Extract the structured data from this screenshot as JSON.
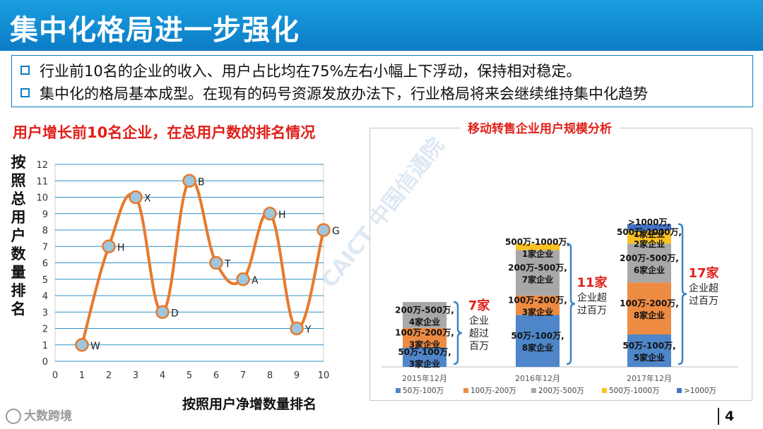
{
  "page": {
    "title": "集中化格局进一步强化",
    "bullets": [
      "行业前10名的企业的收入、用户占比均在75%左右小幅上下浮动，保持相对稳定。",
      "集中化的格局基本成型。在现有的码号资源发放办法下，行业格局将来会继续维持集中化趋势"
    ],
    "page_number": "4",
    "watermark": "大数跨境",
    "caict_watermark": "CAICT 中国信通院"
  },
  "colors": {
    "title_bar": "#0b7cc6",
    "heading_red": "#e0201a",
    "line_orange": "#e8792a",
    "point_fill": "#9dc6df",
    "grid": "#2f8fc4",
    "seg_50_100": "#4e86c9",
    "seg_100_200": "#ee8b43",
    "seg_200_500": "#a8a8a8",
    "seg_500_1000": "#fcc21f",
    "seg_gt1000": "#4472c4",
    "bracket": "#3d85c6"
  },
  "chart_data": [
    {
      "type": "scatter",
      "title": "用户增长前10名企业，在总用户数的排名情况",
      "xlabel": "按照用户净增数量排名",
      "ylabel": "按照总用户数量排名",
      "xlim": [
        0,
        10
      ],
      "ylim": [
        0,
        12
      ],
      "xticks": [
        0,
        1,
        2,
        3,
        4,
        5,
        6,
        7,
        8,
        9,
        10
      ],
      "yticks": [
        0,
        1,
        2,
        3,
        4,
        5,
        6,
        7,
        8,
        9,
        10,
        11,
        12
      ],
      "grid": true,
      "connected": "smooth",
      "points": [
        {
          "x": 1,
          "y": 1,
          "label": "W"
        },
        {
          "x": 2,
          "y": 7,
          "label": "H"
        },
        {
          "x": 3,
          "y": 10,
          "label": "X"
        },
        {
          "x": 4,
          "y": 3,
          "label": "D"
        },
        {
          "x": 5,
          "y": 11,
          "label": "B"
        },
        {
          "x": 6,
          "y": 6,
          "label": "T"
        },
        {
          "x": 7,
          "y": 5,
          "label": "A"
        },
        {
          "x": 8,
          "y": 9,
          "label": "H"
        },
        {
          "x": 9,
          "y": 2,
          "label": "Y"
        },
        {
          "x": 10,
          "y": 8,
          "label": "G"
        }
      ]
    },
    {
      "type": "bar",
      "stacked": true,
      "title": "移动转售企业用户规模分析",
      "categories": [
        "2015年12月",
        "2016年12月",
        "2017年12月"
      ],
      "legend": [
        "50万-100万",
        "100万-200万",
        "200万-500万",
        "500万-1000万",
        ">1000万"
      ],
      "legend_position": "bottom",
      "series": [
        {
          "name": "50万-100万",
          "values": [
            3,
            8,
            5
          ]
        },
        {
          "name": "100万-200万",
          "values": [
            3,
            3,
            8
          ]
        },
        {
          "name": "200万-500万",
          "values": [
            4,
            7,
            6
          ]
        },
        {
          "name": "500万-1000万",
          "values": [
            0,
            1,
            2
          ]
        },
        {
          "name": ">1000万",
          "values": [
            0,
            0,
            1
          ]
        }
      ],
      "segment_labels": [
        [
          {
            "series": 0,
            "range": "50万-100万,",
            "count": "3家企业"
          },
          {
            "series": 1,
            "range": "100万-200万,",
            "count": "3家企业"
          },
          {
            "series": 2,
            "range": "200万-500万,",
            "count": "4家企业"
          }
        ],
        [
          {
            "series": 0,
            "range": "50万-100万,",
            "count": "8家企业"
          },
          {
            "series": 1,
            "range": "100万-200万,",
            "count": "3家企业"
          },
          {
            "series": 2,
            "range": "200万-500万,",
            "count": "7家企业"
          },
          {
            "series": 3,
            "range": "500万-1000万,",
            "count": "1家企业"
          }
        ],
        [
          {
            "series": 0,
            "range": "50万-100万,",
            "count": "5家企业"
          },
          {
            "series": 1,
            "range": "100万-200万,",
            "count": "8家企业"
          },
          {
            "series": 2,
            "range": "200万-500万,",
            "count": "6家企业"
          },
          {
            "series": 3,
            "range": "500万-1000万,",
            "count": "2家企业"
          },
          {
            "series": 4,
            "range": ">1000万,",
            "count": "1家企业"
          }
        ]
      ],
      "annotations": [
        {
          "count": "7家",
          "lines": [
            "企业",
            "超过",
            "百万"
          ]
        },
        {
          "count": "11家",
          "lines": [
            "企业超",
            "过百万"
          ]
        },
        {
          "count": "17家",
          "lines": [
            "企业超",
            "过百万"
          ]
        }
      ]
    }
  ]
}
